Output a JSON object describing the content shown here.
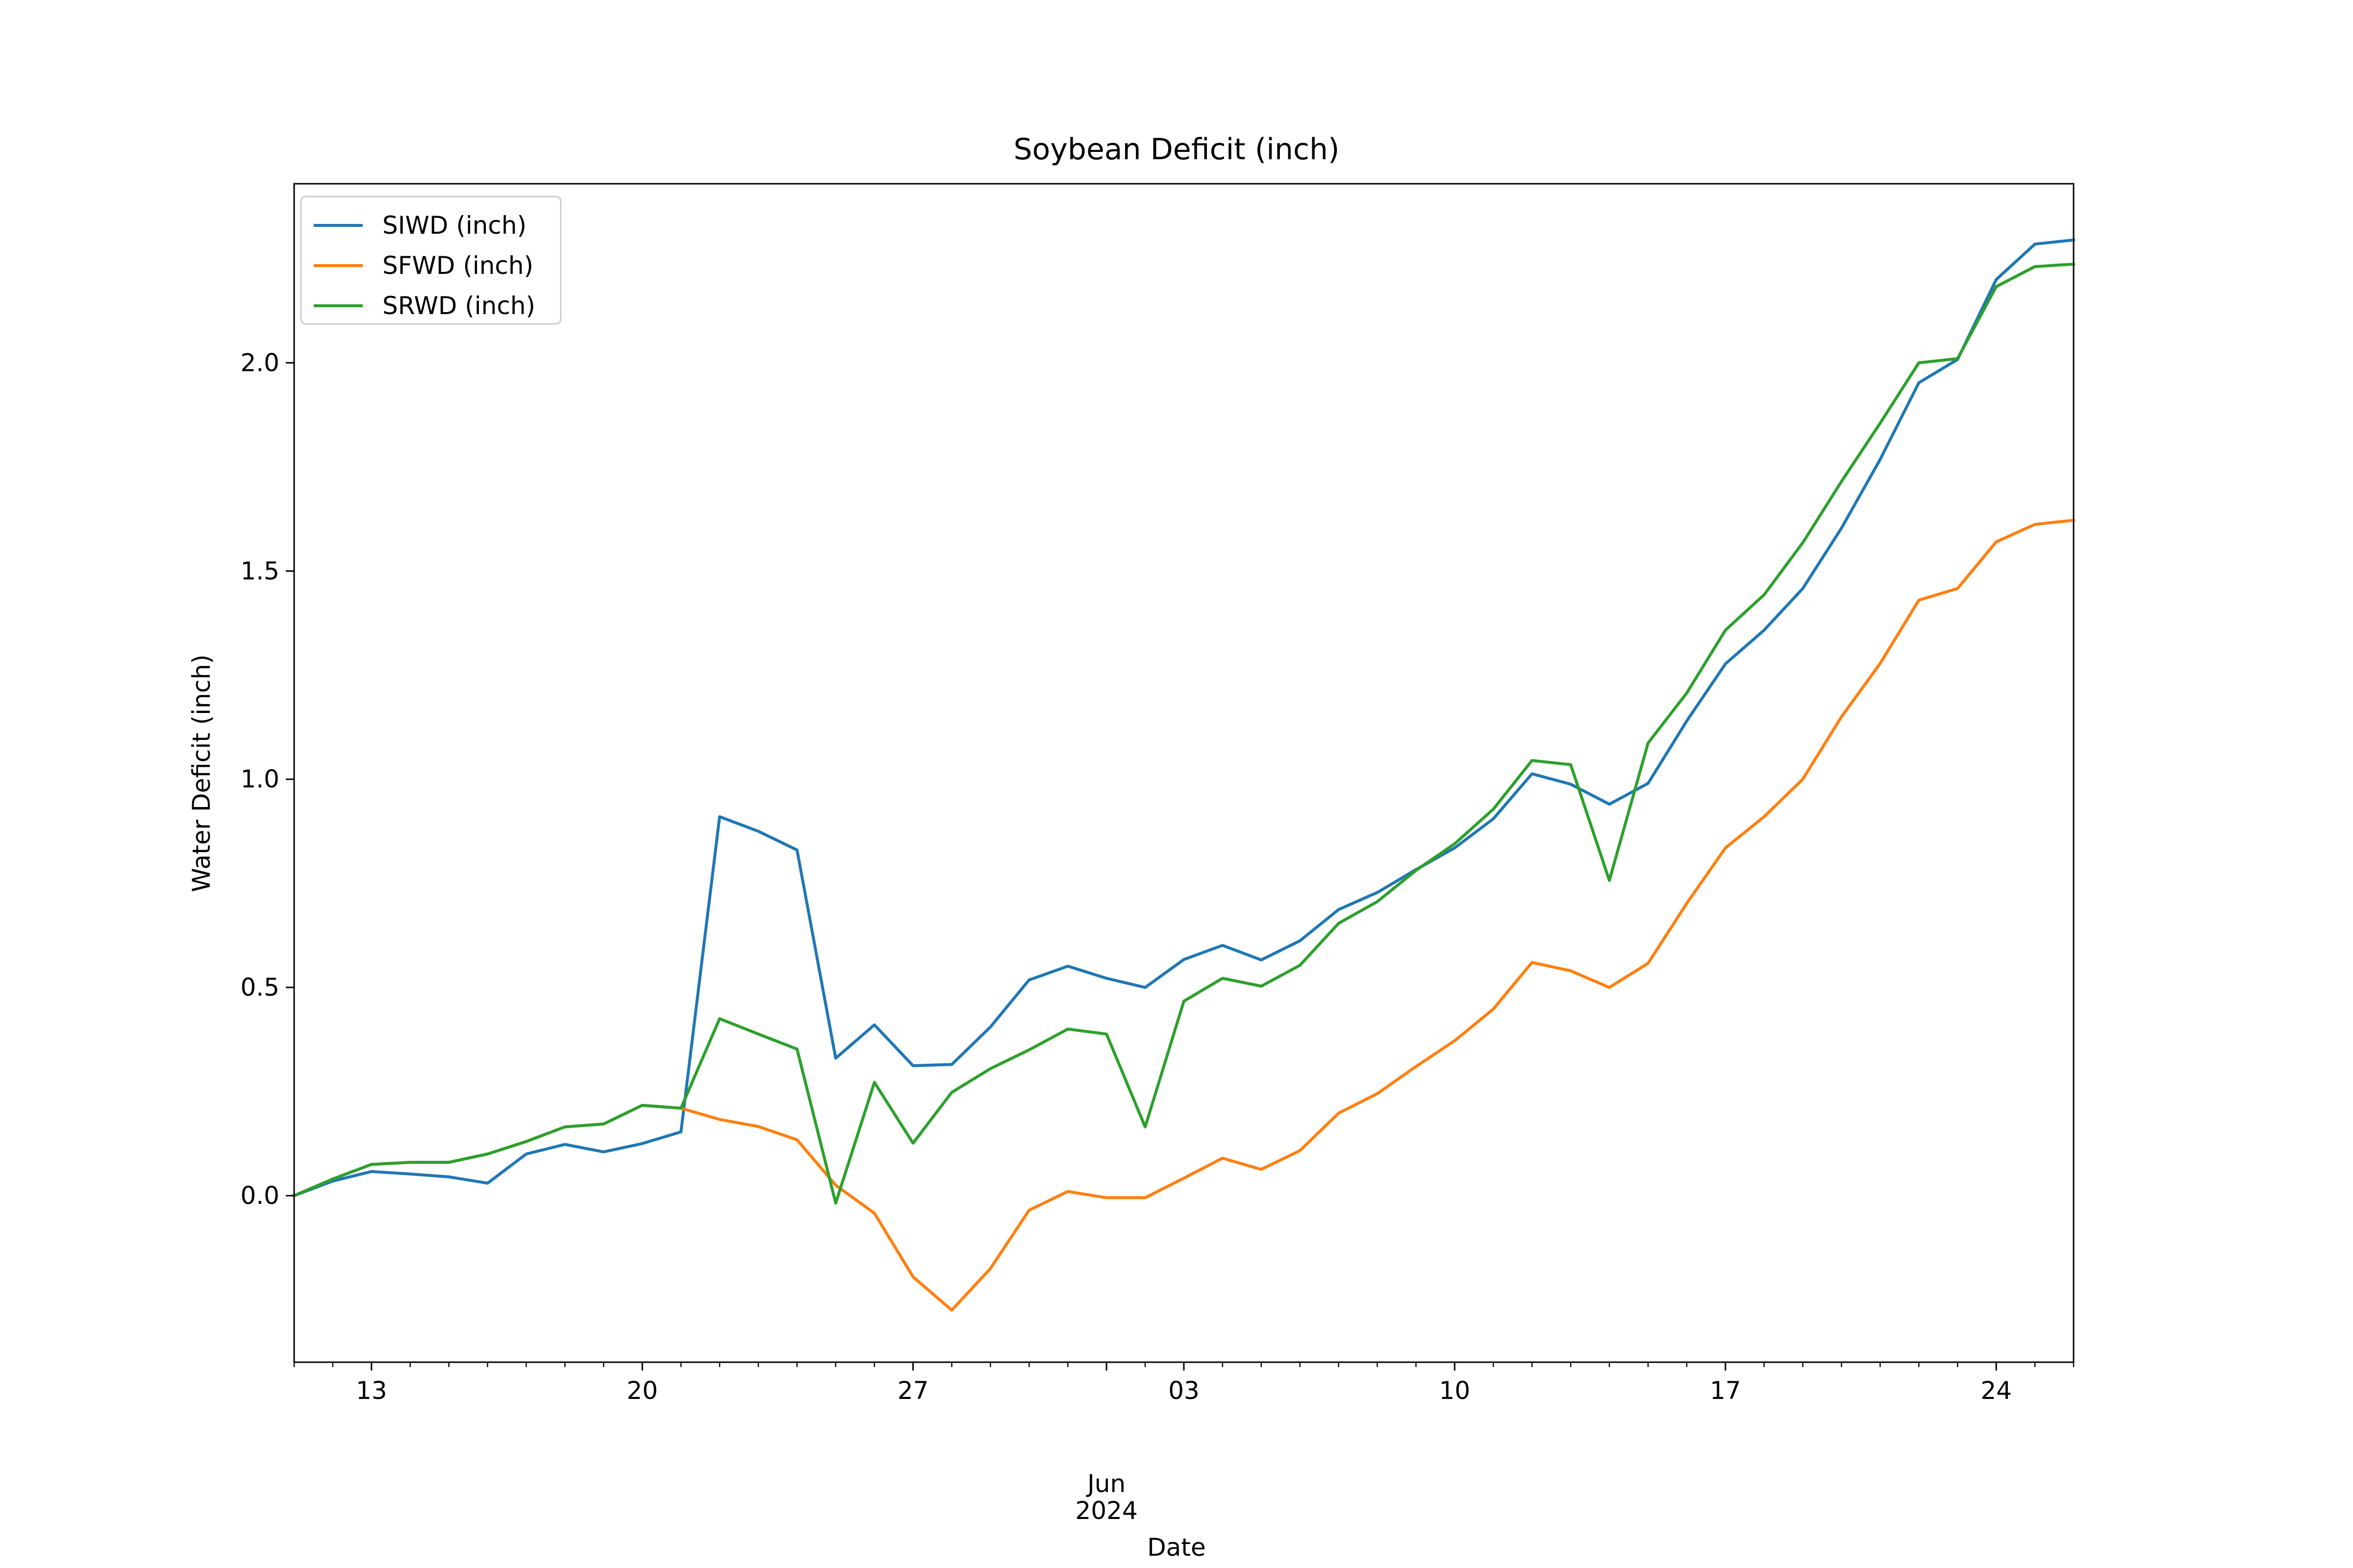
{
  "chart_data": {
    "type": "line",
    "title": "Soybean Deficit (inch)",
    "xlabel": "Date",
    "ylabel": "Water Deficit (inch)",
    "x_axis": {
      "kind": "date",
      "range": [
        "2024-05-11",
        "2024-06-26"
      ],
      "ticks": [
        {
          "date": "2024-05-13",
          "label": "13"
        },
        {
          "date": "2024-05-20",
          "label": "20"
        },
        {
          "date": "2024-05-27",
          "label": "27"
        },
        {
          "date": "2024-06-03",
          "label": "03"
        },
        {
          "date": "2024-06-10",
          "label": "10"
        },
        {
          "date": "2024-06-17",
          "label": "17"
        },
        {
          "date": "2024-06-24",
          "label": "24"
        }
      ],
      "month_label": "Jun",
      "year_label": "2024",
      "month_label_date": "2024-06-01"
    },
    "y_axis": {
      "range": [
        -0.4,
        2.43
      ],
      "ticks": [
        0.0,
        0.5,
        1.0,
        1.5,
        2.0
      ],
      "tick_labels": [
        "0.0",
        "0.5",
        "1.0",
        "1.5",
        "2.0"
      ]
    },
    "grid": false,
    "legend_position": "top-left",
    "x": [
      "2024-05-11",
      "2024-05-12",
      "2024-05-13",
      "2024-05-14",
      "2024-05-15",
      "2024-05-16",
      "2024-05-17",
      "2024-05-18",
      "2024-05-19",
      "2024-05-20",
      "2024-05-21",
      "2024-05-22",
      "2024-05-23",
      "2024-05-24",
      "2024-05-25",
      "2024-05-26",
      "2024-05-27",
      "2024-05-28",
      "2024-05-29",
      "2024-05-30",
      "2024-05-31",
      "2024-06-01",
      "2024-06-02",
      "2024-06-03",
      "2024-06-04",
      "2024-06-05",
      "2024-06-06",
      "2024-06-07",
      "2024-06-08",
      "2024-06-09",
      "2024-06-10",
      "2024-06-11",
      "2024-06-12",
      "2024-06-13",
      "2024-06-14",
      "2024-06-15",
      "2024-06-16",
      "2024-06-17",
      "2024-06-18",
      "2024-06-19",
      "2024-06-20",
      "2024-06-21",
      "2024-06-22",
      "2024-06-23",
      "2024-06-24",
      "2024-06-25",
      "2024-06-26"
    ],
    "series": [
      {
        "name": "SIWD (inch)",
        "color": "#1f77b4",
        "values": [
          0.0,
          0.035,
          0.058,
          0.052,
          0.045,
          0.03,
          0.1,
          0.123,
          0.105,
          0.125,
          0.153,
          0.91,
          0.875,
          0.83,
          0.33,
          0.41,
          0.312,
          0.315,
          0.405,
          0.518,
          0.551,
          0.522,
          0.5,
          0.567,
          0.601,
          0.566,
          0.612,
          0.687,
          0.728,
          0.783,
          0.835,
          0.905,
          1.013,
          0.988,
          0.94,
          0.99,
          1.14,
          1.277,
          1.358,
          1.458,
          1.603,
          1.768,
          1.952,
          2.008,
          2.2,
          2.285,
          2.295
        ]
      },
      {
        "name": "SFWD (inch)",
        "color": "#ff7f0e",
        "values": [
          0.0,
          0.04,
          0.075,
          0.08,
          0.08,
          0.1,
          0.13,
          0.165,
          0.172,
          0.217,
          0.21,
          0.183,
          0.166,
          0.134,
          0.025,
          -0.042,
          -0.195,
          -0.275,
          -0.175,
          -0.035,
          0.01,
          -0.005,
          -0.005,
          0.042,
          0.09,
          0.063,
          0.108,
          0.198,
          0.245,
          0.31,
          0.372,
          0.448,
          0.56,
          0.54,
          0.5,
          0.558,
          0.702,
          0.835,
          0.91,
          1.0,
          1.15,
          1.278,
          1.43,
          1.458,
          1.57,
          1.612,
          1.622
        ]
      },
      {
        "name": "SRWD (inch)",
        "color": "#2ca02c",
        "values": [
          0.0,
          0.04,
          0.075,
          0.08,
          0.08,
          0.1,
          0.13,
          0.165,
          0.172,
          0.217,
          0.21,
          0.425,
          0.388,
          0.352,
          -0.018,
          0.272,
          0.126,
          0.248,
          0.305,
          0.35,
          0.4,
          0.388,
          0.165,
          0.467,
          0.522,
          0.503,
          0.553,
          0.654,
          0.706,
          0.781,
          0.845,
          0.928,
          1.045,
          1.035,
          0.757,
          1.087,
          1.207,
          1.358,
          1.443,
          1.568,
          1.715,
          1.855,
          2.0,
          2.01,
          2.183,
          2.231,
          2.237
        ]
      }
    ]
  }
}
